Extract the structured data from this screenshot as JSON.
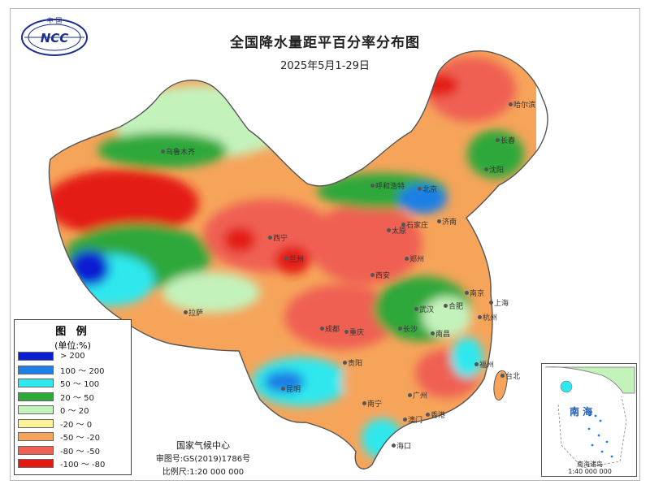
{
  "title": "全国降水量距平百分率分布图",
  "subtitle": "2025年5月1-29日",
  "logo": {
    "text": "NCC",
    "arc_text": "中 国",
    "icon": "ncc-globe-logo"
  },
  "legend": {
    "title": "图 例",
    "unit": "(单位:%)",
    "items": [
      {
        "label": "> 200",
        "color": "#0a1fd2"
      },
      {
        "label": "100 ～ 200",
        "color": "#1e7fe6"
      },
      {
        "label": "50 ～ 100",
        "color": "#2ee8ee"
      },
      {
        "label": "20 ～ 50",
        "color": "#2fa83a"
      },
      {
        "label": "0 ～ 20",
        "color": "#c4f2bb"
      },
      {
        "label": "-20 ～ 0",
        "color": "#fbf29a"
      },
      {
        "label": "-50 ～ -20",
        "color": "#f6a45a"
      },
      {
        "label": "-80 ～ -50",
        "color": "#ef6053"
      },
      {
        "label": "-100 ～ -80",
        "color": "#e41a12"
      }
    ]
  },
  "footer": {
    "agency": "国家气候中心",
    "map_number": "审图号:GS(2019)1786号",
    "scale": "比例尺:1:20 000 000"
  },
  "inset": {
    "sea_label": "南 海",
    "caption": "南海诸岛",
    "scale": "1:40 000 000"
  },
  "cities": [
    {
      "name": "哈尔滨"
    },
    {
      "name": "长春"
    },
    {
      "name": "沈阳"
    },
    {
      "name": "北京"
    },
    {
      "name": "呼和浩特"
    },
    {
      "name": "石家庄"
    },
    {
      "name": "太原"
    },
    {
      "name": "济南"
    },
    {
      "name": "郑州"
    },
    {
      "name": "西安"
    },
    {
      "name": "兰州"
    },
    {
      "name": "西宁"
    },
    {
      "name": "乌鲁木齐"
    },
    {
      "name": "拉萨"
    },
    {
      "name": "成都"
    },
    {
      "name": "重庆"
    },
    {
      "name": "武汉"
    },
    {
      "name": "合肥"
    },
    {
      "name": "南京"
    },
    {
      "name": "上海"
    },
    {
      "name": "杭州"
    },
    {
      "name": "长沙"
    },
    {
      "name": "南昌"
    },
    {
      "name": "福州"
    },
    {
      "name": "台北"
    },
    {
      "name": "广州"
    },
    {
      "name": "香港"
    },
    {
      "name": "澳门"
    },
    {
      "name": "南宁"
    },
    {
      "name": "贵阳"
    },
    {
      "name": "昆明"
    },
    {
      "name": "海口"
    }
  ]
}
